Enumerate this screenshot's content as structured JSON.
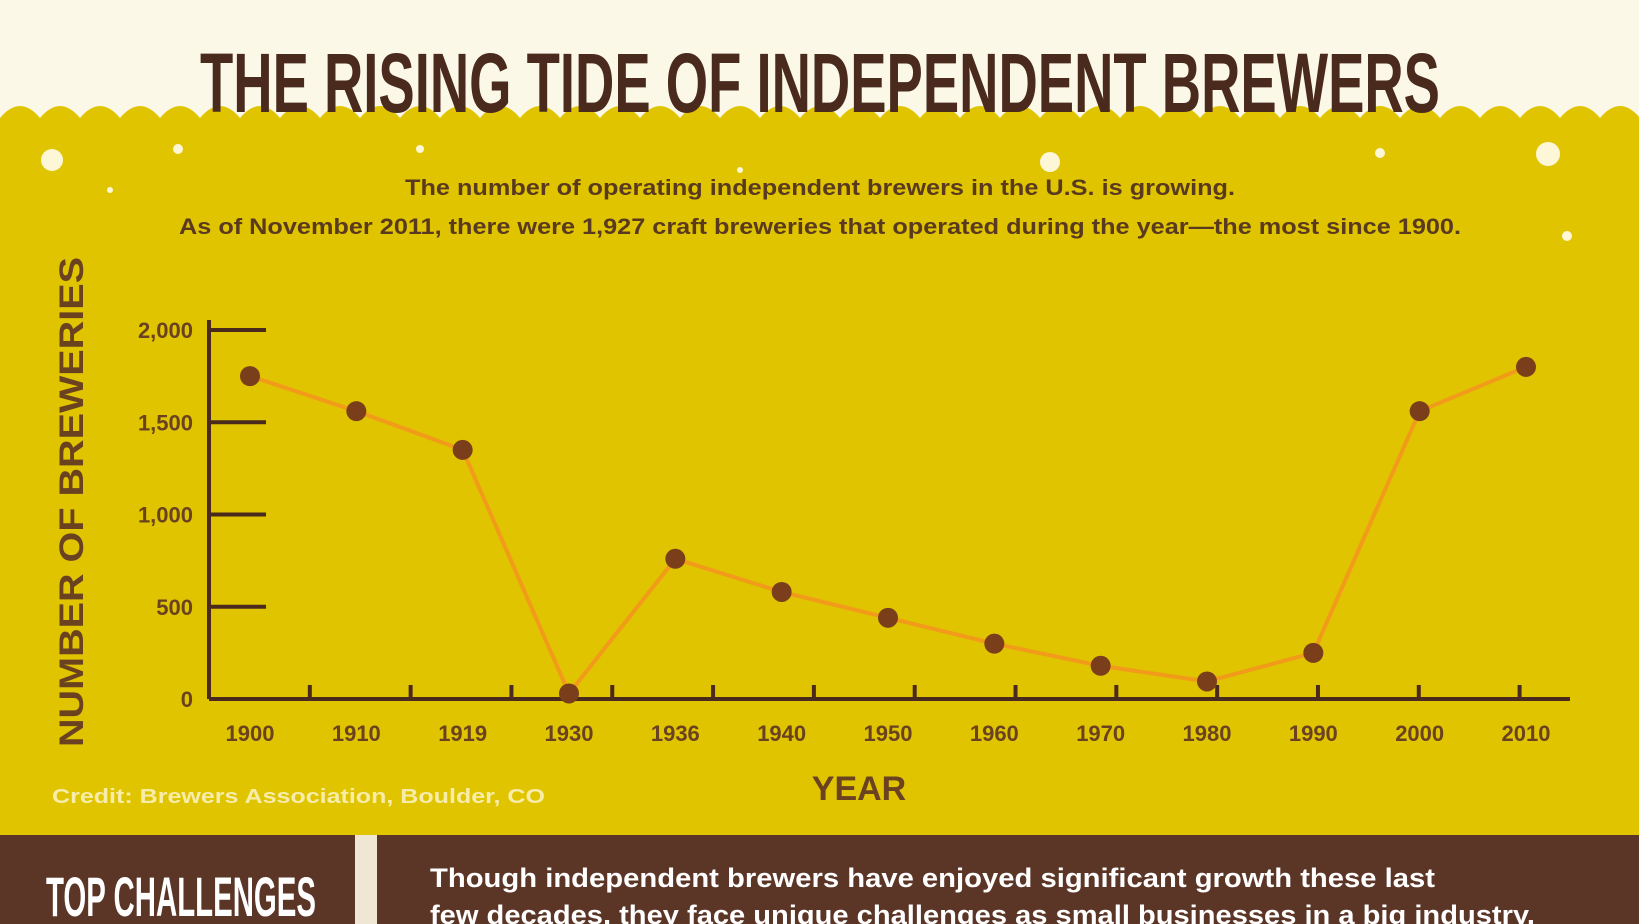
{
  "header": {
    "title": "THE RISING TIDE OF INDEPENDENT BREWERS",
    "subtitle_line1": "The number of operating independent brewers in the U.S. is growing.",
    "subtitle_line2": "As of November 2011, there were 1,927 craft breweries that operated during the year—the most since 1900."
  },
  "credit": "Credit: Brewers Association, Boulder, CO",
  "bottom": {
    "heading": "TOP CHALLENGES",
    "text_line1": "Though independent brewers have enjoyed significant growth these last",
    "text_line2": "few decades, they face unique challenges as small businesses in a big industry."
  },
  "colors": {
    "sky": "#fbf8e8",
    "beer": "#e0c400",
    "line": "#f29a1a",
    "point": "#7a3e1a",
    "axis": "#4a2a1c",
    "bottom_bar": "#5b3526"
  },
  "chart_data": {
    "type": "line",
    "xlabel": "YEAR",
    "ylabel": "NUMBER OF BREWERIES",
    "ylim": [
      0,
      2000
    ],
    "yticks": [
      0,
      500,
      1000,
      1500,
      2000
    ],
    "ytick_labels": [
      "0",
      "500",
      "1,000",
      "1,500",
      "2,000"
    ],
    "xtick_labels": [
      "1900",
      "1910",
      "1919",
      "1930",
      "1936",
      "1940",
      "1950",
      "1960",
      "1970",
      "1980",
      "1990",
      "2000",
      "2010"
    ],
    "values": [
      1750,
      1560,
      1350,
      30,
      760,
      580,
      440,
      300,
      180,
      95,
      250,
      1560,
      1800
    ],
    "grid": false,
    "legend": "none"
  }
}
